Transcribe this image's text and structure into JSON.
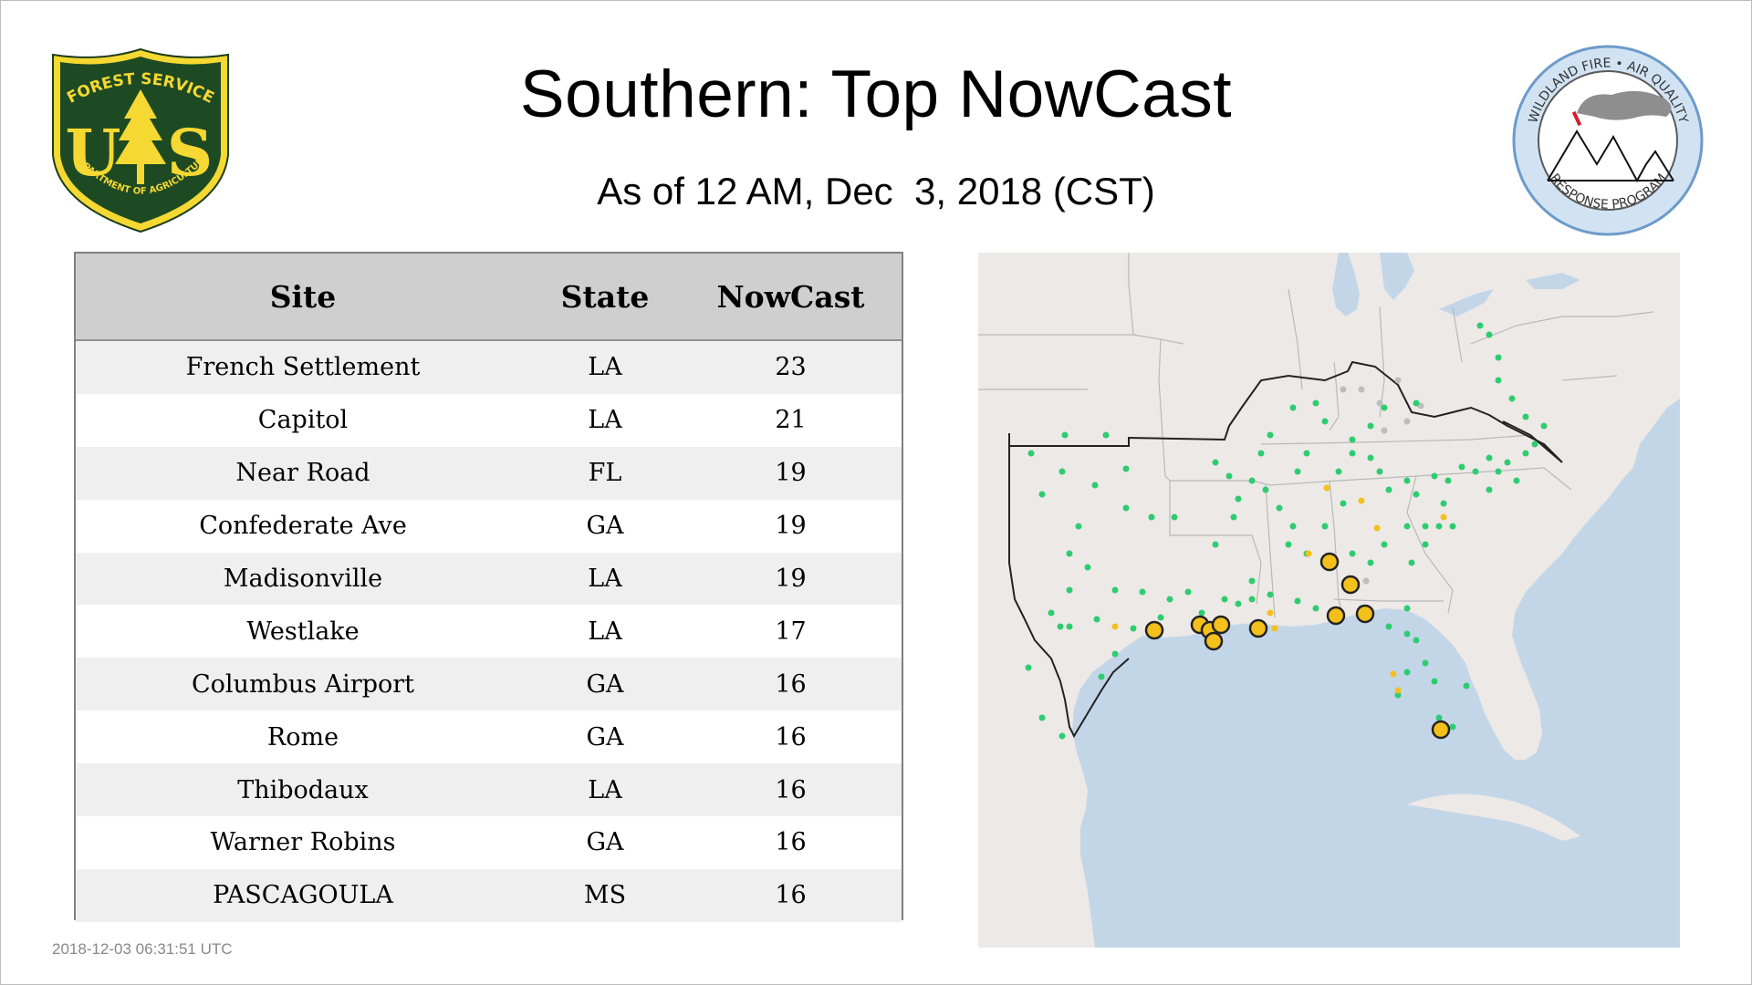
{
  "header": {
    "title": "Southern: Top NowCast",
    "subtitle": "As of 12 AM, Dec  3, 2018 (CST)"
  },
  "logos": {
    "left": {
      "name": "forest-service-shield",
      "top_text": "FOREST SERVICE",
      "bottom_text": "DEPARTMENT OF AGRICULTURE",
      "letters_left": "U",
      "letters_right": "S"
    },
    "right": {
      "name": "wildland-fire-air-quality-seal",
      "top_text": "WILDLAND FIRE • AIR QUALITY",
      "bottom_text": "RESPONSE PROGRAM"
    }
  },
  "table": {
    "columns": [
      "Site",
      "State",
      "NowCast"
    ],
    "rows": [
      {
        "site": "French Settlement",
        "state": "LA",
        "nowcast": "23"
      },
      {
        "site": "Capitol",
        "state": "LA",
        "nowcast": "21"
      },
      {
        "site": "Near Road",
        "state": "FL",
        "nowcast": "19"
      },
      {
        "site": "Confederate Ave",
        "state": "GA",
        "nowcast": "19"
      },
      {
        "site": "Madisonville",
        "state": "LA",
        "nowcast": "19"
      },
      {
        "site": "Westlake",
        "state": "LA",
        "nowcast": "17"
      },
      {
        "site": "Columbus Airport",
        "state": "GA",
        "nowcast": "16"
      },
      {
        "site": "Rome",
        "state": "GA",
        "nowcast": "16"
      },
      {
        "site": "Thibodaux",
        "state": "LA",
        "nowcast": "16"
      },
      {
        "site": "Warner Robins",
        "state": "GA",
        "nowcast": "16"
      },
      {
        "site": "PASCAGOULA",
        "state": "MS",
        "nowcast": "16"
      }
    ]
  },
  "map": {
    "colors": {
      "land": "#ede9e6",
      "water": "#c3d6e8",
      "border": "#b9b9b9",
      "region_border": "#222222",
      "good": "#2ecc71",
      "moderate": "#f3c01c",
      "no_data": "#bdbdbd"
    },
    "legend_categories": [
      "good",
      "moderate",
      "no_data"
    ]
  },
  "footer": {
    "timestamp": "2018-12-03 06:31:51 UTC"
  }
}
